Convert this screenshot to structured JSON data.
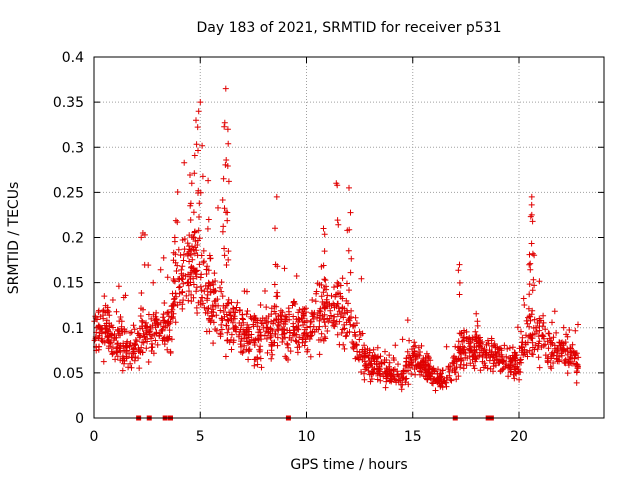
{
  "chart_data": {
    "type": "scatter",
    "title": "Day 183 of 2021, SRMTID for receiver p531",
    "xlabel": "GPS time / hours",
    "ylabel": "SRMTID / TECUs",
    "xlim": [
      0,
      24
    ],
    "ylim": [
      0,
      0.4
    ],
    "x_ticks": [
      0,
      5,
      10,
      15,
      20
    ],
    "x_tick_labels": [
      "0",
      "5",
      "10",
      "15",
      "20"
    ],
    "y_ticks": [
      0,
      0.05,
      0.1,
      0.15,
      0.2,
      0.25,
      0.3,
      0.35,
      0.4
    ],
    "y_tick_labels": [
      "0",
      "0.05",
      "0.1",
      "0.15",
      "0.2",
      "0.25",
      "0.3",
      "0.35",
      "0.4"
    ],
    "grid": true,
    "marker": "+",
    "color": "#e00000",
    "zero_markers_x": [
      2.1,
      2.6,
      3.35,
      3.6,
      9.15,
      17.0,
      18.55,
      18.7
    ],
    "profile": [
      {
        "x": 0.0,
        "y": 0.09
      },
      {
        "x": 0.5,
        "y": 0.1
      },
      {
        "x": 1.0,
        "y": 0.085
      },
      {
        "x": 1.5,
        "y": 0.075
      },
      {
        "x": 2.0,
        "y": 0.08
      },
      {
        "x": 2.5,
        "y": 0.09
      },
      {
        "x": 3.0,
        "y": 0.095
      },
      {
        "x": 3.5,
        "y": 0.1
      },
      {
        "x": 4.0,
        "y": 0.15
      },
      {
        "x": 4.5,
        "y": 0.18
      },
      {
        "x": 5.0,
        "y": 0.16
      },
      {
        "x": 5.5,
        "y": 0.13
      },
      {
        "x": 6.0,
        "y": 0.11
      },
      {
        "x": 6.5,
        "y": 0.11
      },
      {
        "x": 7.0,
        "y": 0.095
      },
      {
        "x": 7.5,
        "y": 0.09
      },
      {
        "x": 8.0,
        "y": 0.095
      },
      {
        "x": 8.5,
        "y": 0.1
      },
      {
        "x": 9.0,
        "y": 0.1
      },
      {
        "x": 9.5,
        "y": 0.105
      },
      {
        "x": 10.0,
        "y": 0.1
      },
      {
        "x": 10.5,
        "y": 0.11
      },
      {
        "x": 11.0,
        "y": 0.12
      },
      {
        "x": 11.5,
        "y": 0.12
      },
      {
        "x": 12.0,
        "y": 0.11
      },
      {
        "x": 12.5,
        "y": 0.075
      },
      {
        "x": 13.0,
        "y": 0.06
      },
      {
        "x": 13.5,
        "y": 0.055
      },
      {
        "x": 14.0,
        "y": 0.05
      },
      {
        "x": 14.5,
        "y": 0.045
      },
      {
        "x": 15.0,
        "y": 0.065
      },
      {
        "x": 15.5,
        "y": 0.06
      },
      {
        "x": 16.0,
        "y": 0.045
      },
      {
        "x": 16.5,
        "y": 0.04
      },
      {
        "x": 17.0,
        "y": 0.06
      },
      {
        "x": 17.5,
        "y": 0.08
      },
      {
        "x": 18.0,
        "y": 0.075
      },
      {
        "x": 18.5,
        "y": 0.07
      },
      {
        "x": 19.0,
        "y": 0.065
      },
      {
        "x": 19.5,
        "y": 0.06
      },
      {
        "x": 20.0,
        "y": 0.06
      },
      {
        "x": 20.5,
        "y": 0.1
      },
      {
        "x": 21.0,
        "y": 0.09
      },
      {
        "x": 21.5,
        "y": 0.075
      },
      {
        "x": 22.0,
        "y": 0.07
      },
      {
        "x": 22.5,
        "y": 0.065
      },
      {
        "x": 22.8,
        "y": 0.06
      }
    ],
    "peaks": [
      {
        "x": 4.8,
        "y": 0.33
      },
      {
        "x": 5.0,
        "y": 0.35
      },
      {
        "x": 4.6,
        "y": 0.26
      },
      {
        "x": 6.2,
        "y": 0.365
      },
      {
        "x": 6.3,
        "y": 0.32
      },
      {
        "x": 6.1,
        "y": 0.265
      },
      {
        "x": 5.4,
        "y": 0.22
      },
      {
        "x": 8.6,
        "y": 0.245
      },
      {
        "x": 11.4,
        "y": 0.26
      },
      {
        "x": 12.0,
        "y": 0.255
      },
      {
        "x": 10.8,
        "y": 0.21
      },
      {
        "x": 20.6,
        "y": 0.245
      },
      {
        "x": 20.6,
        "y": 0.225
      },
      {
        "x": 17.2,
        "y": 0.17
      },
      {
        "x": 2.3,
        "y": 0.205
      },
      {
        "x": 3.8,
        "y": 0.2
      }
    ]
  }
}
